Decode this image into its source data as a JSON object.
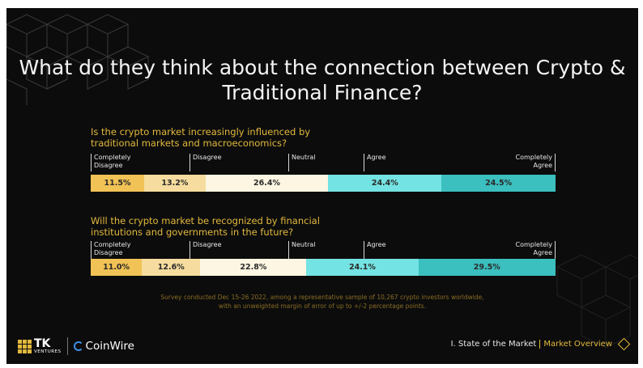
{
  "title": "What do they think about the connection between Crypto & Traditional Finance?",
  "scale_labels": [
    "Completely Disagree",
    "Disagree",
    "Neutral",
    "Agree",
    "Completely Agree"
  ],
  "chart_data": [
    {
      "type": "bar",
      "orientation": "horizontal-stacked-100",
      "title": "Is the crypto market increasingly influenced by traditional markets and macroeconomics?",
      "categories": [
        "Completely Disagree",
        "Disagree",
        "Neutral",
        "Agree",
        "Completely Agree"
      ],
      "values": [
        11.5,
        13.2,
        26.4,
        24.4,
        24.5
      ],
      "labels": [
        "11.5%",
        "13.2%",
        "26.4%",
        "24.4%",
        "24.5%"
      ],
      "colors": [
        "#f1c255",
        "#f6dd9f",
        "#fdf6e2",
        "#74e3e3",
        "#3bbfbf"
      ]
    },
    {
      "type": "bar",
      "orientation": "horizontal-stacked-100",
      "title": "Will the crypto market be recognized by financial institutions and governments in the future?",
      "categories": [
        "Completely Disagree",
        "Disagree",
        "Neutral",
        "Agree",
        "Completely Agree"
      ],
      "values": [
        11.0,
        12.6,
        22.8,
        24.1,
        29.5
      ],
      "labels": [
        "11.0%",
        "12.6%",
        "22.8%",
        "24.1%",
        "29.5%"
      ],
      "colors": [
        "#f1c255",
        "#f6dd9f",
        "#fdf6e2",
        "#74e3e3",
        "#3bbfbf"
      ]
    }
  ],
  "note_line1": "Survey conducted Dec 15-26 2022, among a representative sample of 10,267 crypto investors worldwide,",
  "note_line2": "with an unweighted margin of error of up to +/-2 percentage points.",
  "footer": {
    "tk_main": "TK",
    "tk_sub": "VENTURES",
    "coinwire": "CoinWire",
    "section": "I. State of the Market",
    "subsection": "Market Overview"
  }
}
